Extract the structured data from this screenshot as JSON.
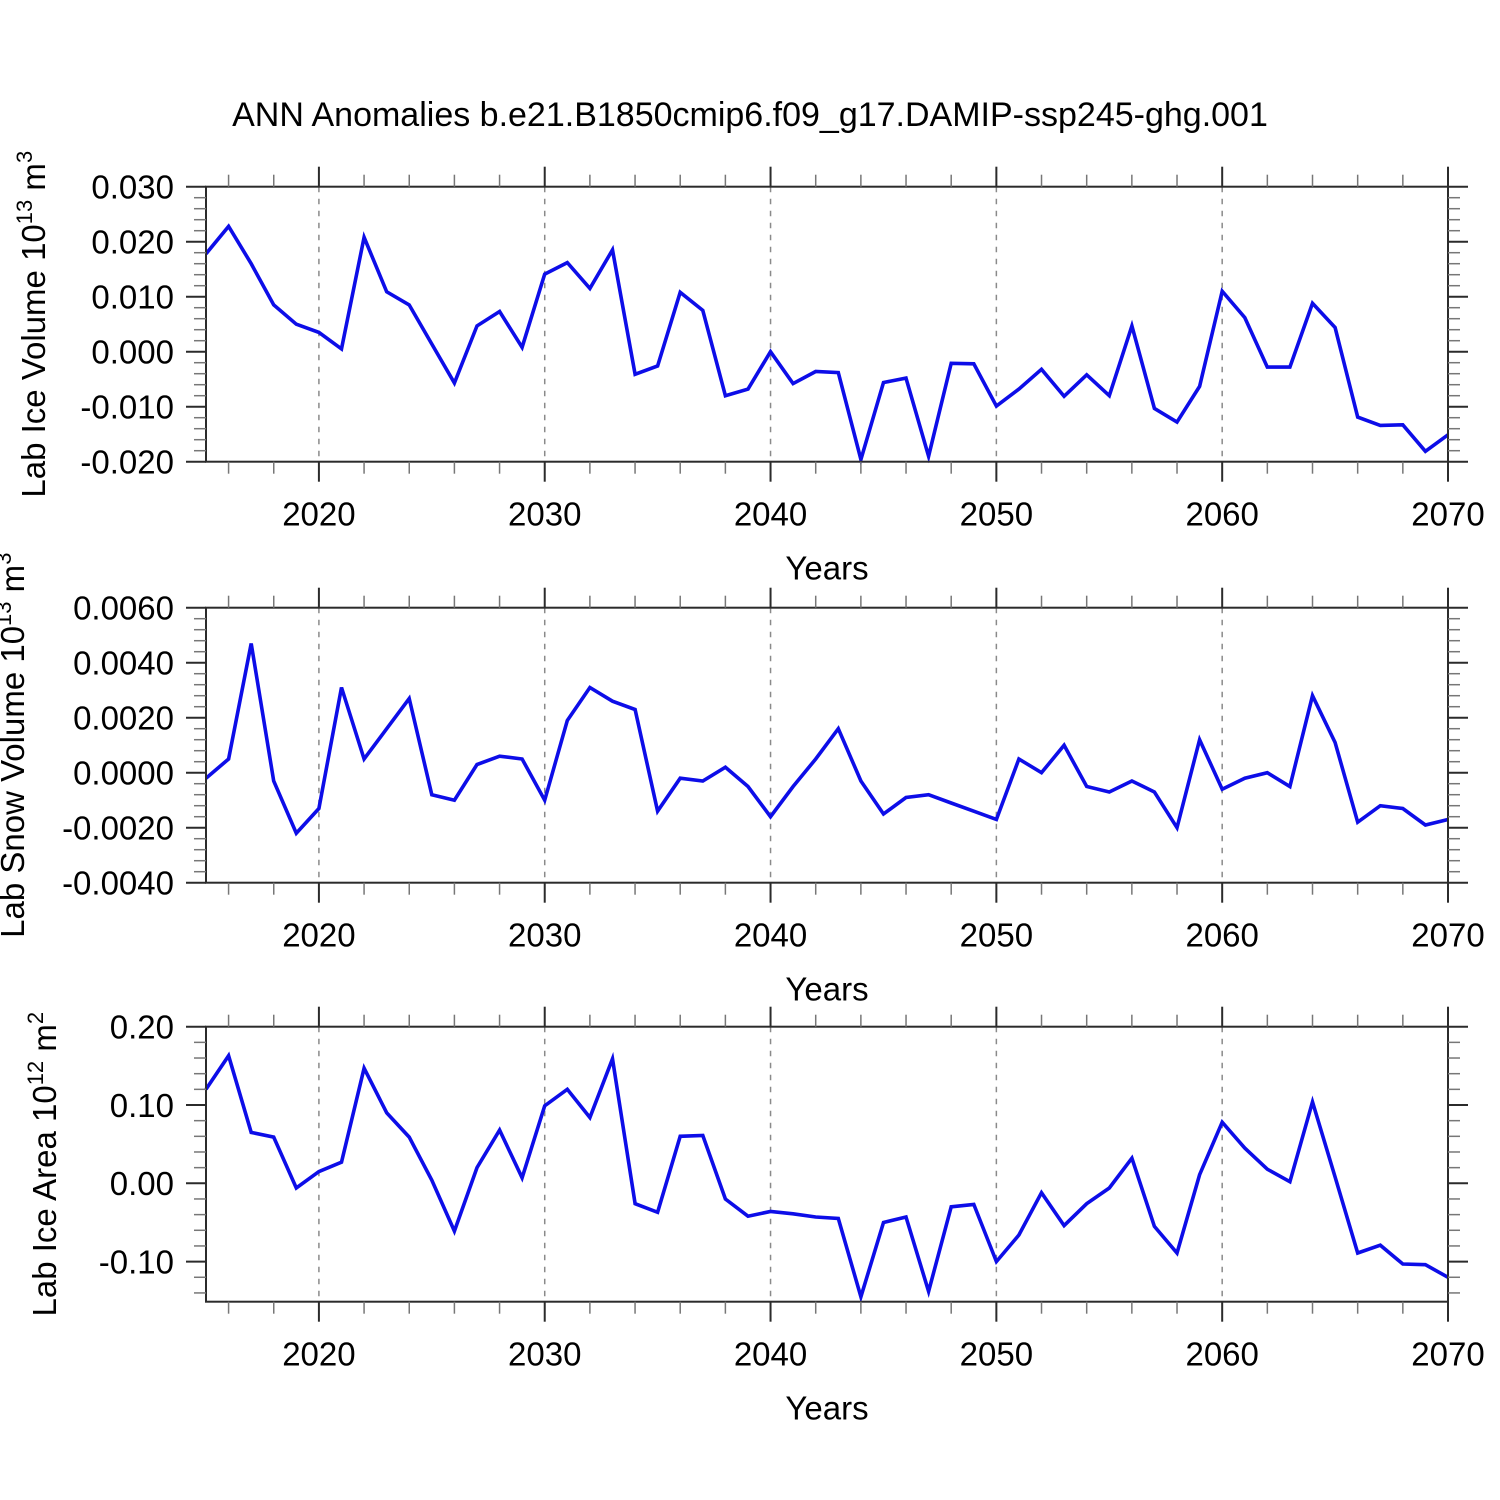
{
  "title": "ANN Anomalies b.e21.B1850cmip6.f09_g17.DAMIP-ssp245-ghg.001",
  "line_color": "#0d0de8",
  "grid_color": "#8a8a8a",
  "x_axis": {
    "label": "Years",
    "tick_labels": [
      "2020",
      "2030",
      "2040",
      "2050",
      "2060",
      "2070"
    ],
    "tick_values": [
      2020,
      2030,
      2040,
      2050,
      2060,
      2070
    ],
    "range": [
      2015,
      2070
    ],
    "minor_step": 2,
    "grid_values": [
      2020,
      2030,
      2040,
      2050,
      2060
    ]
  },
  "chart_data": [
    {
      "type": "line",
      "id": "lab-ice-volume",
      "xlabel": "Years",
      "ylabel": "Lab Ice Volume 10^13 m^3",
      "ylabel_parts": {
        "prefix": "Lab Ice Volume 10",
        "exponent": "13",
        "unit": " m",
        "unit_exponent": "3"
      },
      "ylim": [
        -0.02,
        0.03
      ],
      "y_tick_values": [
        0.03,
        0.02,
        0.01,
        0.0,
        -0.01,
        -0.02
      ],
      "y_tick_labels": [
        "0.030",
        "0.020",
        "0.010",
        "0.000",
        "-0.010",
        "-0.020"
      ],
      "y_minor_step": 0.002,
      "grid": "x-dashed",
      "x": [
        2015,
        2016,
        2017,
        2018,
        2019,
        2020,
        2021,
        2022,
        2023,
        2024,
        2025,
        2026,
        2027,
        2028,
        2029,
        2030,
        2031,
        2032,
        2033,
        2034,
        2035,
        2036,
        2037,
        2038,
        2039,
        2040,
        2041,
        2042,
        2043,
        2044,
        2045,
        2046,
        2047,
        2048,
        2049,
        2050,
        2051,
        2052,
        2053,
        2054,
        2055,
        2056,
        2057,
        2058,
        2059,
        2060,
        2061,
        2062,
        2063,
        2064,
        2065,
        2066,
        2067,
        2068,
        2069,
        2070
      ],
      "values": [
        0.0178,
        0.0228,
        0.016,
        0.0085,
        0.005,
        0.0035,
        0.0005,
        0.0208,
        0.0109,
        0.0085,
        0.0014,
        -0.0057,
        0.0047,
        0.0073,
        0.0008,
        0.0141,
        0.0162,
        0.0115,
        0.0185,
        -0.0041,
        -0.0026,
        0.0108,
        0.0075,
        -0.008,
        -0.0068,
        0.0,
        -0.0058,
        -0.0036,
        -0.0038,
        -0.0196,
        -0.0056,
        -0.0048,
        -0.019,
        -0.0021,
        -0.0022,
        -0.0099,
        -0.0068,
        -0.0032,
        -0.0081,
        -0.0042,
        -0.008,
        0.0047,
        -0.0103,
        -0.0128,
        -0.0063,
        0.011,
        0.0062,
        -0.0028,
        -0.0028,
        0.0088,
        0.0044,
        -0.0119,
        -0.0134,
        -0.0133,
        -0.0181,
        -0.0151
      ]
    },
    {
      "type": "line",
      "id": "lab-snow-volume",
      "xlabel": "Years",
      "ylabel": "Lab Snow Volume 10^13 m^3",
      "ylabel_parts": {
        "prefix": "Lab Snow Volume 10",
        "exponent": "13",
        "unit": " m",
        "unit_exponent": "3"
      },
      "ylim": [
        -0.004,
        0.006
      ],
      "y_tick_values": [
        0.006,
        0.004,
        0.002,
        0.0,
        -0.002,
        -0.004
      ],
      "y_tick_labels": [
        "0.0060",
        "0.0040",
        "0.0020",
        "0.0000",
        "-0.0020",
        "-0.0040"
      ],
      "y_minor_step": 0.0004,
      "grid": "x-dashed",
      "x": [
        2015,
        2016,
        2017,
        2018,
        2019,
        2020,
        2021,
        2022,
        2023,
        2024,
        2025,
        2026,
        2027,
        2028,
        2029,
        2030,
        2031,
        2032,
        2033,
        2034,
        2035,
        2036,
        2037,
        2038,
        2039,
        2040,
        2041,
        2042,
        2043,
        2044,
        2045,
        2046,
        2047,
        2048,
        2049,
        2050,
        2051,
        2052,
        2053,
        2054,
        2055,
        2056,
        2057,
        2058,
        2059,
        2060,
        2061,
        2062,
        2063,
        2064,
        2065,
        2066,
        2067,
        2068,
        2069,
        2070
      ],
      "values": [
        -0.0002,
        0.0005,
        0.0047,
        -0.0003,
        -0.0022,
        -0.0013,
        0.0031,
        0.0005,
        0.0016,
        0.0027,
        -0.0008,
        -0.001,
        0.0003,
        0.0006,
        0.0005,
        -0.001,
        0.0019,
        0.0031,
        0.0026,
        0.0023,
        -0.0014,
        -0.0002,
        -0.0003,
        0.0002,
        -0.0005,
        -0.0016,
        -0.0005,
        0.0005,
        0.0016,
        -0.0003,
        -0.0015,
        -0.0009,
        -0.0008,
        -0.0011,
        -0.0014,
        -0.0017,
        0.0005,
        0.0,
        0.001,
        -0.0005,
        -0.0007,
        -0.0003,
        -0.0007,
        -0.002,
        0.0012,
        -0.0006,
        -0.0002,
        0.0,
        -0.0005,
        0.0028,
        0.0011,
        -0.0018,
        -0.0012,
        -0.0013,
        -0.0019,
        -0.0017
      ]
    },
    {
      "type": "line",
      "id": "lab-ice-area",
      "xlabel": "Years",
      "ylabel": "Lab Ice Area 10^12 m^2",
      "ylabel_parts": {
        "prefix": "Lab Ice Area 10",
        "exponent": "12",
        "unit": " m",
        "unit_exponent": "2"
      },
      "ylim": [
        -0.1512,
        0.2
      ],
      "y_tick_values": [
        0.2,
        0.1,
        0.0,
        -0.1
      ],
      "y_tick_labels": [
        "0.20",
        "0.10",
        "0.00",
        "-0.10"
      ],
      "y_minor_step": 0.02,
      "grid": "x-dashed",
      "x": [
        2015,
        2016,
        2017,
        2018,
        2019,
        2020,
        2021,
        2022,
        2023,
        2024,
        2025,
        2026,
        2027,
        2028,
        2029,
        2030,
        2031,
        2032,
        2033,
        2034,
        2035,
        2036,
        2037,
        2038,
        2039,
        2040,
        2041,
        2042,
        2043,
        2044,
        2045,
        2046,
        2047,
        2048,
        2049,
        2050,
        2051,
        2052,
        2053,
        2054,
        2055,
        2056,
        2057,
        2058,
        2059,
        2060,
        2061,
        2062,
        2063,
        2064,
        2065,
        2066,
        2067,
        2068,
        2069,
        2070
      ],
      "values": [
        0.12,
        0.163,
        0.065,
        0.059,
        -0.006,
        0.015,
        0.027,
        0.147,
        0.09,
        0.059,
        0.004,
        -0.061,
        0.02,
        0.068,
        0.007,
        0.099,
        0.12,
        0.084,
        0.159,
        -0.026,
        -0.037,
        0.06,
        0.061,
        -0.02,
        -0.042,
        -0.036,
        -0.039,
        -0.043,
        -0.045,
        -0.145,
        -0.05,
        -0.043,
        -0.138,
        -0.03,
        -0.027,
        -0.1,
        -0.066,
        -0.012,
        -0.054,
        -0.026,
        -0.006,
        0.032,
        -0.055,
        -0.089,
        0.011,
        0.078,
        0.045,
        0.018,
        0.002,
        0.104,
        0.008,
        -0.089,
        -0.079,
        -0.103,
        -0.104,
        -0.12
      ]
    }
  ]
}
